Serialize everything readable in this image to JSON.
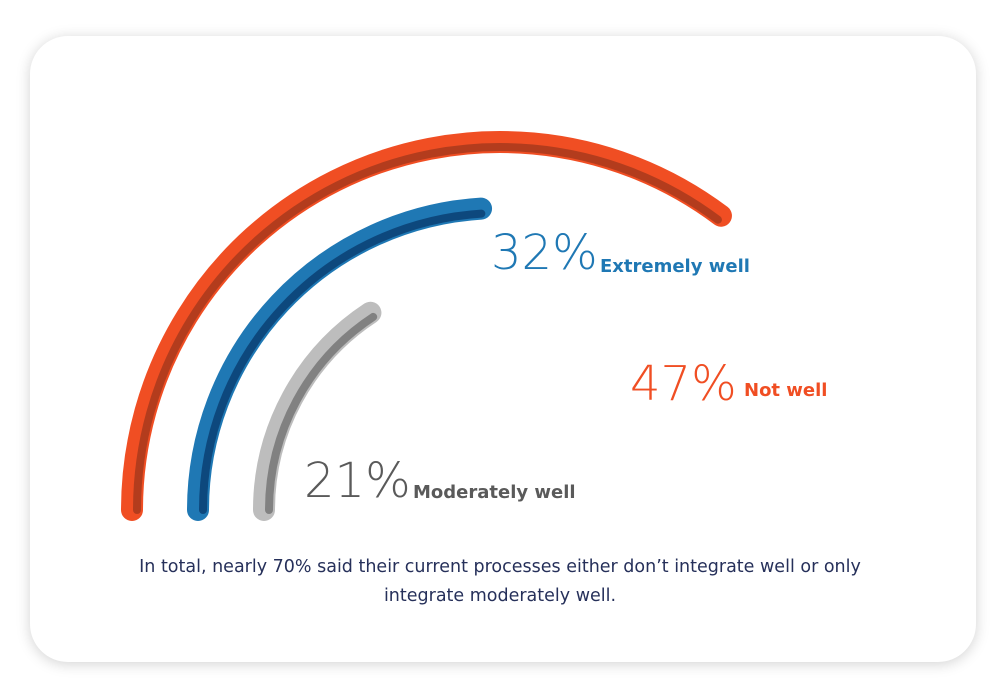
{
  "chart_data": {
    "type": "radial-bar",
    "series": [
      {
        "label": "Not well",
        "value": 47,
        "value_text": "47%",
        "color": "#f04e23",
        "shadow": "#a8391c"
      },
      {
        "label": "Extremely well",
        "value": 32,
        "value_text": "32%",
        "color": "#1f78b4",
        "shadow": "#0b3f73"
      },
      {
        "label": "Moderately well",
        "value": 21,
        "value_text": "21%",
        "color": "#bdbdbd",
        "shadow": "#777777"
      }
    ],
    "caption": "In total, nearly 70% said their current processes either don’t integrate well or only integrate moderately well."
  }
}
